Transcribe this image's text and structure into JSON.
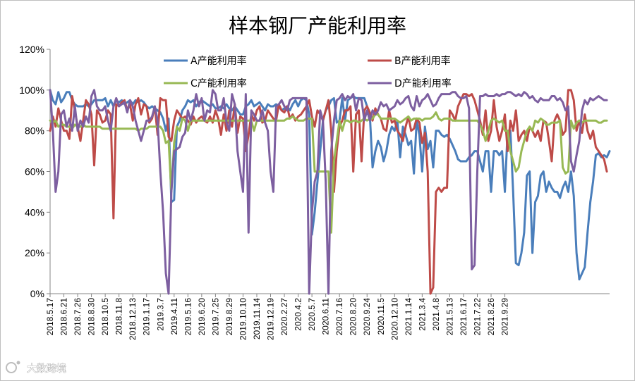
{
  "watermark": {
    "text": "大数跨境"
  },
  "chart_data": {
    "type": "line",
    "title": "样本钢厂产能利用率",
    "xlabel": "",
    "ylabel": "",
    "ylim": [
      0,
      120
    ],
    "yticks": [
      "0%",
      "20%",
      "40%",
      "60%",
      "80%",
      "100%",
      "120%"
    ],
    "grid": false,
    "legend_position": "top",
    "x_tick_labels": [
      "2018.5.17",
      "2018.6.21",
      "2018.7.26",
      "2018.8.30",
      "2018.10.5",
      "2018.11.8",
      "2018.12.13",
      "2019.1.17",
      "2019.3.7",
      "2019.4.11",
      "2019.5.16",
      "2019.6.20",
      "2019.7.25",
      "2019.8.29",
      "2019.10.10",
      "2019.11.14",
      "2019.12.19",
      "2020.2.27",
      "2020.4.2",
      "2020.5.7",
      "2020.6.11",
      "2020.7.16",
      "2020.8.20",
      "2020.9.24",
      "2020.11.5",
      "2020.12.10",
      "2021.1.14",
      "2021.3.4",
      "2021.4.8",
      "2021.5.13",
      "2021.6.17",
      "2021.7.22",
      "2021.8.26",
      "2021.9.29"
    ],
    "x_step_per_tick": 5,
    "series": [
      {
        "name": "A产能利用率",
        "color": "#4a7ebb",
        "values": [
          100,
          95,
          93,
          99,
          94,
          96,
          99,
          99,
          95,
          93,
          92,
          92,
          92,
          93,
          92,
          93,
          95,
          95,
          95,
          95,
          96,
          92,
          95,
          92,
          95,
          94,
          95,
          93,
          94,
          95,
          93,
          95,
          94,
          95,
          94,
          92,
          91,
          92,
          91,
          90,
          89,
          86,
          80,
          86,
          45,
          46,
          82,
          85,
          90,
          92,
          95,
          94,
          95,
          92,
          94,
          95,
          94,
          93,
          92,
          93,
          91,
          91,
          92,
          91,
          93,
          91,
          90,
          92,
          90,
          88,
          88,
          92,
          93,
          95,
          92,
          93,
          94,
          92,
          90,
          93,
          92,
          92,
          93,
          92,
          90,
          91,
          92,
          90,
          93,
          95,
          92,
          95,
          96,
          95,
          88,
          29,
          40,
          55,
          70,
          85,
          90,
          92,
          95,
          96,
          84,
          85,
          96,
          85,
          95,
          96,
          97,
          96,
          96,
          96,
          96,
          92,
          88,
          62,
          70,
          75,
          72,
          65,
          70,
          78,
          82,
          80,
          85,
          67,
          82,
          78,
          73,
          75,
          59,
          85,
          78,
          60,
          82,
          71,
          75,
          62,
          80,
          80,
          78,
          77,
          78,
          76,
          73,
          70,
          66,
          65,
          65,
          65,
          67,
          68,
          70,
          70,
          65,
          60,
          70,
          70,
          50,
          70,
          70,
          68,
          70,
          50,
          80,
          80,
          50,
          15,
          14,
          20,
          30,
          58,
          60,
          20,
          45,
          48,
          58,
          60,
          50,
          55,
          52,
          50,
          50,
          47,
          52,
          55,
          50,
          60,
          48,
          20,
          7,
          10,
          13,
          30,
          45,
          55,
          68,
          69,
          67,
          68,
          67,
          70
        ]
      },
      {
        "name": "B产能利用率",
        "color": "#be4b48",
        "values": [
          80,
          87,
          82,
          91,
          85,
          80,
          80,
          76,
          97,
          90,
          82,
          75,
          85,
          95,
          93,
          88,
          63,
          90,
          88,
          84,
          85,
          90,
          88,
          37,
          93,
          92,
          94,
          95,
          90,
          93,
          85,
          93,
          96,
          88,
          93,
          92,
          84,
          86,
          92,
          78,
          96,
          95,
          95,
          77,
          75,
          85,
          90,
          88,
          86,
          87,
          85,
          83,
          87,
          84,
          86,
          87,
          85,
          84,
          87,
          84,
          90,
          86,
          78,
          88,
          80,
          90,
          82,
          93,
          79,
          87,
          86,
          70,
          78,
          88,
          85,
          90,
          92,
          84,
          85,
          90,
          88,
          86,
          85,
          93,
          90,
          89,
          92,
          86,
          88,
          85,
          87,
          88,
          90,
          92,
          95,
          87,
          82,
          90,
          88,
          85,
          90,
          95,
          80,
          50,
          70,
          82,
          85,
          90,
          90,
          92,
          60,
          88,
          90,
          65,
          90,
          92,
          89,
          85,
          91,
          88,
          86,
          81,
          80,
          90,
          84,
          85,
          80,
          78,
          75,
          82,
          87,
          80,
          81,
          86,
          84,
          74,
          79,
          60,
          0,
          3,
          50,
          52,
          50,
          52,
          52,
          90,
          88,
          85,
          92,
          95,
          98,
          98,
          97,
          98,
          95,
          90,
          85,
          78,
          90,
          75,
          80,
          95,
          82,
          75,
          80,
          88,
          70,
          85,
          80,
          90,
          75,
          78,
          80,
          75,
          82,
          80,
          77,
          80,
          75,
          85,
          84,
          75,
          65,
          85,
          88,
          85,
          78,
          80,
          100,
          100,
          95,
          80,
          85,
          79,
          88,
          80,
          76,
          80,
          72,
          70,
          68,
          66,
          60
        ]
      },
      {
        "name": "C产能利用率",
        "color": "#98b954",
        "values": [
          85,
          84,
          85,
          82,
          83,
          83,
          82,
          82,
          81,
          83,
          82,
          82,
          83,
          82,
          82,
          82,
          82,
          82,
          82,
          81,
          81,
          81,
          81,
          81,
          81,
          81,
          81,
          81,
          81,
          81,
          81,
          81,
          80,
          81,
          81,
          81,
          82,
          82,
          82,
          82,
          82,
          80,
          74,
          75,
          50,
          74,
          82,
          80,
          86,
          85,
          80,
          85,
          85,
          85,
          85,
          85,
          85,
          85,
          85,
          85,
          85,
          85,
          85,
          85,
          85,
          85,
          85,
          85,
          85,
          85,
          85,
          85,
          85,
          85,
          80,
          85,
          85,
          85,
          85,
          85,
          85,
          85,
          85,
          85,
          85,
          85,
          86,
          86,
          87,
          86,
          85,
          85,
          85,
          86,
          86,
          86,
          60,
          60,
          60,
          60,
          60,
          60,
          30,
          65,
          75,
          85,
          80,
          85,
          85,
          84,
          85,
          85,
          84,
          85,
          86,
          85,
          86,
          86,
          88,
          88,
          86,
          86,
          86,
          86,
          86,
          86,
          85,
          84,
          85,
          86,
          87,
          85,
          86,
          86,
          86,
          85,
          86,
          86,
          86,
          87,
          89,
          86,
          85,
          86,
          86,
          86,
          85,
          85,
          85,
          85,
          85,
          85,
          85,
          85,
          85,
          85,
          83,
          80,
          75,
          80,
          85,
          86,
          85,
          84,
          85,
          80,
          80,
          70,
          65,
          60,
          62,
          70,
          75,
          80,
          82,
          80,
          85,
          84,
          86,
          85,
          83,
          83,
          84,
          84,
          84,
          85,
          62,
          59,
          60,
          85,
          81,
          84,
          85,
          84,
          85,
          85,
          85,
          85,
          85,
          84,
          84,
          85,
          85
        ]
      },
      {
        "name": "D产能利用率",
        "color": "#7d5fa0",
        "values": [
          100,
          80,
          50,
          60,
          88,
          90,
          82,
          86,
          80,
          92,
          80,
          85,
          82,
          87,
          84,
          97,
          100,
          92,
          90,
          90,
          92,
          85,
          80,
          92,
          96,
          92,
          93,
          94,
          89,
          95,
          92,
          85,
          80,
          75,
          80,
          85,
          85,
          87,
          92,
          85,
          60,
          40,
          10,
          0,
          50,
          70,
          71,
          72,
          77,
          79,
          90,
          85,
          90,
          98,
          92,
          96,
          85,
          90,
          89,
          100,
          98,
          90,
          90,
          96,
          84,
          80,
          98,
          93,
          70,
          60,
          50,
          98,
          30,
          90,
          88,
          85,
          85,
          90,
          84,
          80,
          60,
          50,
          92,
          93,
          95,
          92,
          90,
          95,
          96,
          96,
          96,
          96,
          96,
          96,
          0,
          40,
          55,
          60,
          90,
          85,
          55,
          0,
          70,
          85,
          95,
          96,
          98,
          95,
          97,
          96,
          98,
          90,
          96,
          95,
          85,
          90,
          85,
          90,
          88,
          90,
          94,
          92,
          93,
          90,
          91,
          92,
          95,
          93,
          94,
          96,
          97,
          92,
          90,
          97,
          92,
          95,
          96,
          98,
          95,
          92,
          93,
          96,
          98,
          98,
          98,
          98,
          99,
          99,
          97,
          96,
          96,
          97,
          91,
          12,
          14,
          60,
          97,
          97,
          98,
          97,
          97,
          97,
          98,
          97,
          98,
          98,
          99,
          99,
          98,
          97,
          98,
          97,
          99,
          98,
          96,
          97,
          95,
          94,
          96,
          95,
          95,
          95,
          97,
          97,
          95,
          96,
          94,
          90,
          92,
          65,
          60,
          68,
          75,
          90,
          95,
          93,
          96,
          95,
          96,
          97,
          96,
          95,
          95
        ]
      }
    ]
  }
}
